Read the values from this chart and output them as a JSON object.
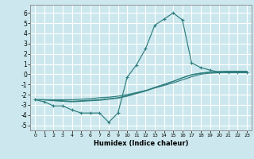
{
  "xlabel": "Humidex (Indice chaleur)",
  "xlim": [
    -0.5,
    23.5
  ],
  "ylim": [
    -5.5,
    6.8
  ],
  "xticks": [
    0,
    1,
    2,
    3,
    4,
    5,
    6,
    7,
    8,
    9,
    10,
    11,
    12,
    13,
    14,
    15,
    16,
    17,
    18,
    19,
    20,
    21,
    22,
    23
  ],
  "yticks": [
    -5,
    -4,
    -3,
    -2,
    -1,
    0,
    1,
    2,
    3,
    4,
    5,
    6
  ],
  "bg_color": "#cce8ee",
  "grid_color": "#ffffff",
  "line_color": "#2d7d7d",
  "line1_x": [
    0,
    1,
    2,
    3,
    4,
    5,
    6,
    7,
    8,
    9,
    10,
    11,
    12,
    13,
    14,
    15,
    16,
    17,
    18,
    19,
    20,
    21,
    22,
    23
  ],
  "line1_y": [
    -2.5,
    -2.7,
    -3.1,
    -3.1,
    -3.5,
    -3.8,
    -3.8,
    -3.8,
    -4.7,
    -3.8,
    -0.3,
    0.9,
    2.5,
    4.8,
    5.4,
    6.0,
    5.3,
    1.1,
    0.65,
    0.4,
    0.2,
    0.15,
    0.15,
    0.15
  ],
  "line2_x": [
    0,
    1,
    2,
    3,
    4,
    5,
    6,
    7,
    8,
    9,
    10,
    11,
    12,
    13,
    14,
    15,
    16,
    17,
    18,
    19,
    20,
    21,
    22,
    23
  ],
  "line2_y": [
    -2.5,
    -2.5,
    -2.5,
    -2.5,
    -2.5,
    -2.45,
    -2.4,
    -2.3,
    -2.25,
    -2.15,
    -2.0,
    -1.8,
    -1.6,
    -1.35,
    -1.1,
    -0.85,
    -0.55,
    -0.25,
    0.0,
    0.1,
    0.15,
    0.2,
    0.2,
    0.2
  ],
  "line3_x": [
    0,
    1,
    2,
    3,
    4,
    5,
    6,
    7,
    8,
    9,
    10,
    11,
    12,
    13,
    14,
    15,
    16,
    17,
    18,
    19,
    20,
    21,
    22,
    23
  ],
  "line3_y": [
    -2.5,
    -2.5,
    -2.55,
    -2.6,
    -2.65,
    -2.6,
    -2.55,
    -2.5,
    -2.4,
    -2.3,
    -2.1,
    -1.85,
    -1.6,
    -1.3,
    -1.0,
    -0.7,
    -0.35,
    -0.05,
    0.1,
    0.2,
    0.25,
    0.28,
    0.28,
    0.28
  ],
  "line4_x": [
    0,
    1,
    2,
    3,
    4,
    5,
    6,
    7,
    8,
    9,
    10,
    11,
    12,
    13,
    14,
    15,
    16,
    17,
    18,
    19,
    20,
    21,
    22,
    23
  ],
  "line4_y": [
    -2.5,
    -2.5,
    -2.6,
    -2.65,
    -2.7,
    -2.65,
    -2.6,
    -2.55,
    -2.45,
    -2.35,
    -2.15,
    -1.9,
    -1.65,
    -1.3,
    -1.0,
    -0.7,
    -0.35,
    -0.05,
    0.1,
    0.2,
    0.25,
    0.28,
    0.28,
    0.28
  ]
}
